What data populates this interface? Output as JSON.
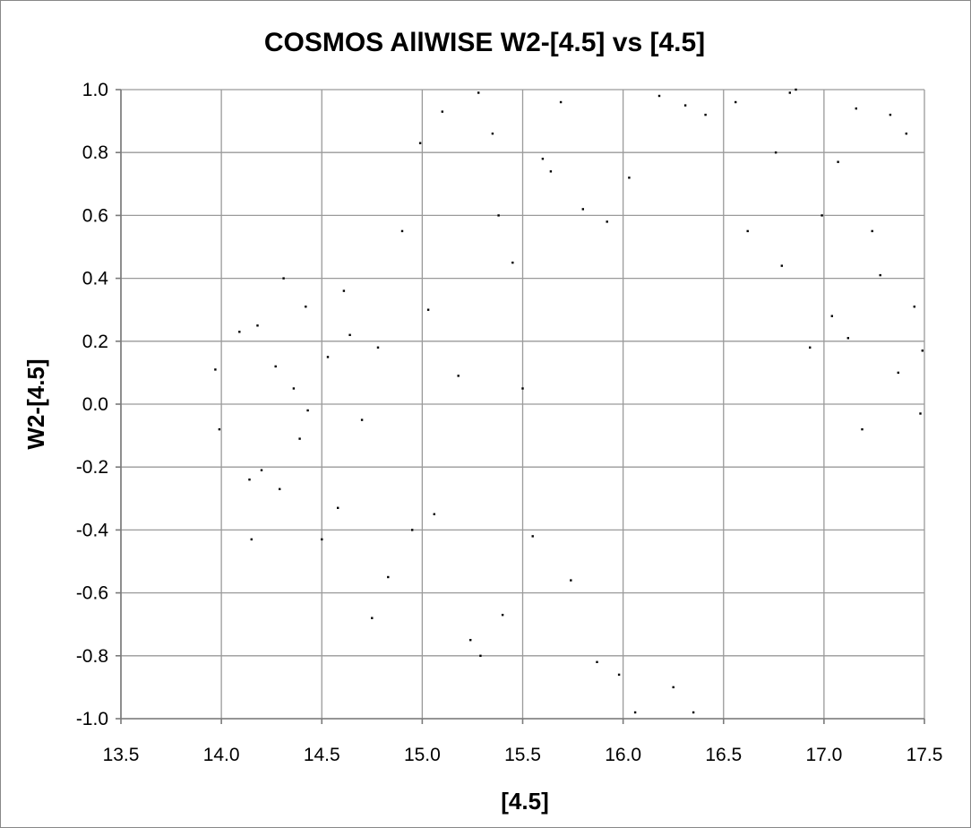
{
  "chart_data": {
    "type": "scatter",
    "title": "COSMOS AllWISE W2-[4.5] vs [4.5]",
    "xlabel": "[4.5]",
    "ylabel": "W2-[4.5]",
    "xlim": [
      13.5,
      17.5
    ],
    "ylim": [
      -1.0,
      1.0
    ],
    "x_ticks": [
      13.5,
      14.0,
      14.5,
      15.0,
      15.5,
      16.0,
      16.5,
      17.0,
      17.5
    ],
    "x_tick_labels": [
      "13.5",
      "14.0",
      "14.5",
      "15.0",
      "15.5",
      "16.0",
      "16.5",
      "17.0",
      "17.5"
    ],
    "y_ticks": [
      -1.0,
      -0.8,
      -0.6,
      -0.4,
      -0.2,
      0.0,
      0.2,
      0.4,
      0.6,
      0.8,
      1.0
    ],
    "y_tick_labels": [
      "-1.0",
      "-0.8",
      "-0.6",
      "-0.4",
      "-0.2",
      "0.0",
      "0.2",
      "0.4",
      "0.6",
      "0.8",
      "1.0"
    ],
    "grid": true,
    "legend": "none",
    "marker_color": "#000000",
    "series": [
      {
        "points": [
          [
            13.97,
            0.11
          ],
          [
            13.99,
            -0.08
          ],
          [
            14.09,
            0.23
          ],
          [
            14.14,
            -0.24
          ],
          [
            14.15,
            -0.43
          ],
          [
            14.18,
            0.25
          ],
          [
            14.2,
            -0.21
          ],
          [
            14.27,
            0.12
          ],
          [
            14.29,
            -0.27
          ],
          [
            14.31,
            0.4
          ],
          [
            14.36,
            0.05
          ],
          [
            14.39,
            -0.11
          ],
          [
            14.42,
            0.31
          ],
          [
            14.43,
            -0.02
          ],
          [
            14.5,
            -0.43
          ],
          [
            14.53,
            0.15
          ],
          [
            14.58,
            -0.33
          ],
          [
            14.61,
            0.36
          ],
          [
            14.64,
            0.22
          ],
          [
            14.7,
            -0.05
          ],
          [
            14.75,
            -0.68
          ],
          [
            14.78,
            0.18
          ],
          [
            14.83,
            -0.55
          ],
          [
            14.9,
            0.55
          ],
          [
            14.95,
            -0.4
          ],
          [
            14.99,
            0.83
          ],
          [
            15.03,
            0.3
          ],
          [
            15.06,
            -0.35
          ],
          [
            15.1,
            0.93
          ],
          [
            15.18,
            0.09
          ],
          [
            15.24,
            -0.75
          ],
          [
            15.28,
            0.99
          ],
          [
            15.29,
            -0.8
          ],
          [
            15.35,
            0.86
          ],
          [
            15.38,
            0.6
          ],
          [
            15.4,
            -0.67
          ],
          [
            15.45,
            0.45
          ],
          [
            15.5,
            0.05
          ],
          [
            15.55,
            -0.42
          ],
          [
            15.6,
            0.78
          ],
          [
            15.64,
            0.74
          ],
          [
            15.69,
            0.96
          ],
          [
            15.74,
            -0.56
          ],
          [
            15.8,
            0.62
          ],
          [
            15.87,
            -0.82
          ],
          [
            15.92,
            0.58
          ],
          [
            15.98,
            -0.86
          ],
          [
            16.03,
            0.72
          ],
          [
            16.06,
            -0.98
          ],
          [
            16.18,
            0.98
          ],
          [
            16.25,
            -0.9
          ],
          [
            16.31,
            0.95
          ],
          [
            16.35,
            -0.98
          ],
          [
            16.41,
            0.92
          ],
          [
            16.56,
            0.96
          ],
          [
            16.62,
            0.55
          ],
          [
            16.76,
            0.8
          ],
          [
            16.79,
            0.44
          ],
          [
            16.83,
            0.99
          ],
          [
            16.86,
            1.0
          ],
          [
            16.93,
            0.18
          ],
          [
            16.99,
            0.6
          ],
          [
            17.04,
            0.28
          ],
          [
            17.07,
            0.77
          ],
          [
            17.12,
            0.21
          ],
          [
            17.16,
            0.94
          ],
          [
            17.19,
            -0.08
          ],
          [
            17.24,
            0.55
          ],
          [
            17.28,
            0.41
          ],
          [
            17.33,
            0.92
          ],
          [
            17.37,
            0.1
          ],
          [
            17.41,
            0.86
          ],
          [
            17.45,
            0.31
          ],
          [
            17.48,
            -0.03
          ],
          [
            17.49,
            0.17
          ]
        ]
      }
    ]
  }
}
